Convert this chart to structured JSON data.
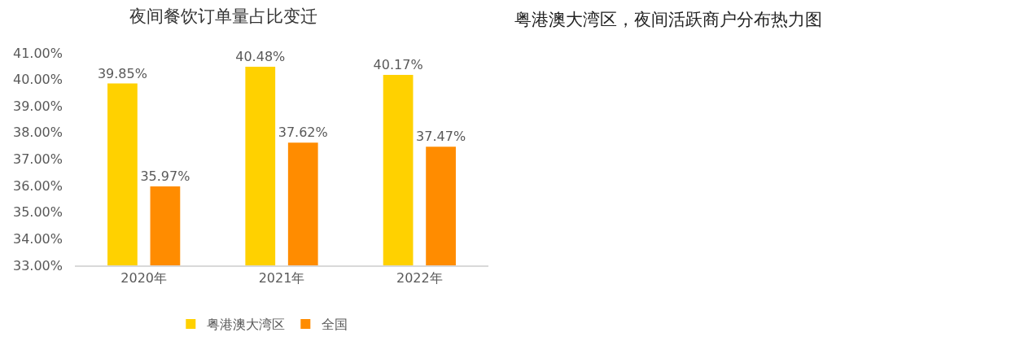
{
  "chart_data": [
    {
      "type": "bar",
      "title": "夜间餐饮订单量占比变迁",
      "categories": [
        "2020年",
        "2021年",
        "2022年"
      ],
      "series": [
        {
          "name": "粤港澳大湾区",
          "color": "#ffd100",
          "values": [
            39.85,
            40.48,
            40.17
          ],
          "value_labels": [
            "39.85%",
            "40.48%",
            "40.17%"
          ]
        },
        {
          "name": "全国",
          "color": "#ff8c00",
          "values": [
            35.97,
            37.62,
            37.47
          ],
          "value_labels": [
            "35.97%",
            "37.62%",
            "37.47%"
          ]
        }
      ],
      "ylim": [
        33,
        41
      ],
      "yticks": [
        {
          "value": 33,
          "label": "33.00%"
        },
        {
          "value": 34,
          "label": "34.00%"
        },
        {
          "value": 35,
          "label": "35.00%"
        },
        {
          "value": 36,
          "label": "36.00%"
        },
        {
          "value": 37,
          "label": "37.00%"
        },
        {
          "value": 38,
          "label": "38.00%"
        },
        {
          "value": 39,
          "label": "39.00%"
        },
        {
          "value": 40,
          "label": "40.00%"
        },
        {
          "value": 41,
          "label": "41.00%"
        }
      ],
      "legend": "bottom"
    },
    {
      "type": "other",
      "title": "粤港澳大湾区，夜间活跃商户分布热力图"
    }
  ]
}
